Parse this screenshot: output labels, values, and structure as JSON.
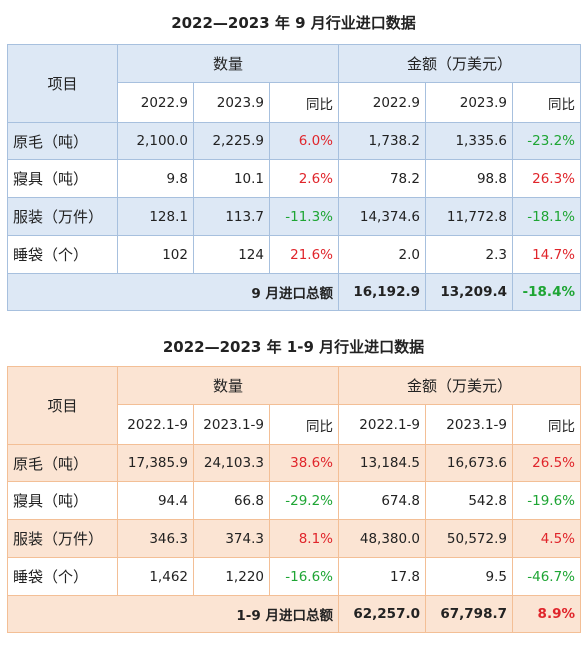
{
  "table1": {
    "title": "2022—2023 年 9 月行业进口数据",
    "header": {
      "item": "项目",
      "quantity": "数量",
      "amount": "金额（万美元）",
      "y1": "2022.9",
      "y2": "2023.9",
      "yoy": "同比"
    },
    "rows": [
      {
        "label": "原毛（吨）",
        "q1": "2,100.0",
        "q2": "2,225.9",
        "qy": "6.0%",
        "a1": "1,738.2",
        "a2": "1,335.6",
        "ay": "-23.2%"
      },
      {
        "label": "寢具（吨）",
        "q1": "9.8",
        "q2": "10.1",
        "qy": "2.6%",
        "a1": "78.2",
        "a2": "98.8",
        "ay": "26.3%"
      },
      {
        "label": "服装（万件）",
        "q1": "128.1",
        "q2": "113.7",
        "qy": "-11.3%",
        "a1": "14,374.6",
        "a2": "11,772.8",
        "ay": "-18.1%"
      },
      {
        "label": "睡袋（个）",
        "q1": "102",
        "q2": "124",
        "qy": "21.6%",
        "a1": "2.0",
        "a2": "2.3",
        "ay": "14.7%"
      }
    ],
    "total": {
      "label": "9 月进口总额",
      "a1": "16,192.9",
      "a2": "13,209.4",
      "ay": "-18.4%"
    }
  },
  "table2": {
    "title": "2022—2023 年 1-9 月行业进口数据",
    "header": {
      "item": "项目",
      "quantity": "数量",
      "amount": "金额（万美元）",
      "y1": "2022.1-9",
      "y2": "2023.1-9",
      "yoy": "同比"
    },
    "rows": [
      {
        "label": "原毛（吨）",
        "q1": "17,385.9",
        "q2": "24,103.3",
        "qy": "38.6%",
        "a1": "13,184.5",
        "a2": "16,673.6",
        "ay": "26.5%"
      },
      {
        "label": "寢具（吨）",
        "q1": "94.4",
        "q2": "66.8",
        "qy": "-29.2%",
        "a1": "674.8",
        "a2": "542.8",
        "ay": "-19.6%"
      },
      {
        "label": "服装（万件）",
        "q1": "346.3",
        "q2": "374.3",
        "qy": "8.1%",
        "a1": "48,380.0",
        "a2": "50,572.9",
        "ay": "4.5%"
      },
      {
        "label": "睡袋（个）",
        "q1": "1,462",
        "q2": "1,220",
        "qy": "-16.6%",
        "a1": "17.8",
        "a2": "9.5",
        "ay": "-46.7%"
      }
    ],
    "total": {
      "label": "1-9 月进口总额",
      "a1": "62,257.0",
      "a2": "67,798.7",
      "ay": "8.9%"
    }
  },
  "colors": {
    "positive": "#e0252b",
    "negative": "#1ea534",
    "table1_tint": "#dde8f5",
    "table2_tint": "#fbe4d3"
  }
}
